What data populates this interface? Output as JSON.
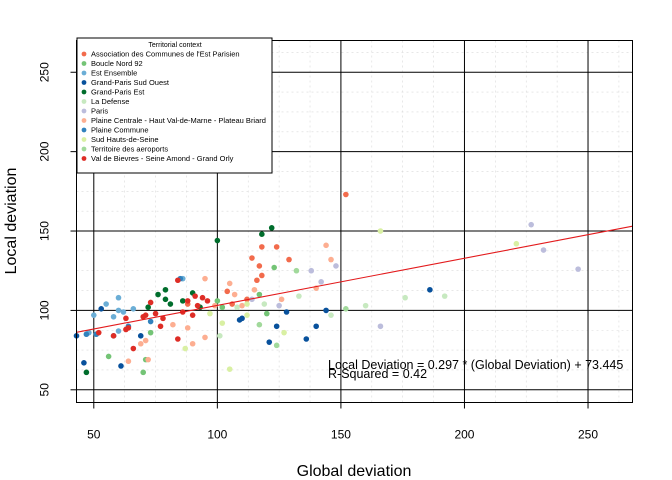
{
  "chart_data": {
    "type": "scatter",
    "title": "",
    "xlabel": "Global deviation",
    "ylabel": "Local deviation",
    "xlim": [
      43,
      268
    ],
    "ylim": [
      42,
      270
    ],
    "xticks": [
      50,
      100,
      150,
      200,
      250
    ],
    "yticks": [
      50,
      100,
      150,
      200,
      250
    ],
    "xtick_labels": [
      "50",
      "100",
      "150",
      "200",
      "250"
    ],
    "ytick_labels": [
      "50",
      "100",
      "150",
      "200",
      "250"
    ],
    "grid": true,
    "legend": {
      "title": "Territorial context",
      "placement": "top-left"
    },
    "regression": {
      "slope": 0.297,
      "intercept": 73.445,
      "color": "#e31a1c",
      "equation_text": "Local Deviation = 0.297 * (Global Deviation) + 73.445",
      "r2_text": "R-Squared = 0.42"
    },
    "series": [
      {
        "name": "Association des Communes de l'Est Parisien",
        "color": "#f26b4c",
        "points": [
          [
            152,
            173
          ],
          [
            118,
            140
          ],
          [
            124,
            140
          ],
          [
            114,
            133
          ],
          [
            129,
            132
          ],
          [
            117,
            128
          ],
          [
            118,
            122
          ],
          [
            116,
            119
          ],
          [
            104,
            112
          ],
          [
            112,
            107
          ],
          [
            106,
            104
          ],
          [
            88,
            104
          ]
        ]
      },
      {
        "name": "Boucle Nord 92",
        "color": "#74c476",
        "points": [
          [
            56,
            71
          ],
          [
            70,
            61
          ],
          [
            71,
            69
          ],
          [
            100,
            106
          ],
          [
            102,
            102
          ],
          [
            120,
            98
          ],
          [
            117,
            110
          ],
          [
            123,
            127
          ],
          [
            73,
            86
          ]
        ]
      },
      {
        "name": "Est Ensemble",
        "color": "#6baed6",
        "points": [
          [
            50,
            97
          ],
          [
            48,
            86
          ],
          [
            55,
            104
          ],
          [
            58,
            96
          ],
          [
            60,
            100
          ],
          [
            60,
            108
          ],
          [
            62,
            99
          ],
          [
            66,
            101
          ],
          [
            60,
            87
          ],
          [
            86,
            120
          ]
        ]
      },
      {
        "name": "Grand-Paris Sud Ouest",
        "color": "#08519c",
        "points": [
          [
            46,
            67
          ],
          [
            43,
            84
          ],
          [
            53,
            101
          ],
          [
            61,
            65
          ],
          [
            69,
            84
          ],
          [
            109,
            94
          ],
          [
            110,
            95
          ],
          [
            121,
            80
          ],
          [
            124,
            90
          ],
          [
            128,
            99
          ],
          [
            136,
            82
          ],
          [
            140,
            90
          ],
          [
            144,
            100
          ],
          [
            186,
            113
          ]
        ]
      },
      {
        "name": "Grand-Paris Est",
        "color": "#006d2c",
        "points": [
          [
            47,
            61
          ],
          [
            100,
            144
          ],
          [
            122,
            152
          ],
          [
            118,
            148
          ],
          [
            79,
            113
          ],
          [
            81,
            104
          ],
          [
            90,
            111
          ],
          [
            79,
            107
          ],
          [
            86,
            106
          ],
          [
            93,
            102
          ],
          [
            76,
            110
          ],
          [
            72,
            102
          ]
        ]
      },
      {
        "name": "La Defense",
        "color": "#c7e9c0",
        "points": [
          [
            101,
            84
          ],
          [
            108,
            102
          ],
          [
            119,
            104
          ],
          [
            133,
            109
          ],
          [
            176,
            108
          ],
          [
            192,
            109
          ],
          [
            146,
            97
          ],
          [
            160,
            103
          ]
        ]
      },
      {
        "name": "Paris",
        "color": "#bcbddc",
        "points": [
          [
            227,
            154
          ],
          [
            232,
            138
          ],
          [
            246,
            126
          ],
          [
            166,
            90
          ],
          [
            148,
            128
          ],
          [
            138,
            125
          ],
          [
            142,
            118
          ],
          [
            125,
            103
          ],
          [
            114,
            107
          ]
        ]
      },
      {
        "name": "Plaine Centrale - Haut Val-de-Marne - Plateau Briard",
        "color": "#fdae91",
        "points": [
          [
            95,
            120
          ],
          [
            105,
            117
          ],
          [
            107,
            110
          ],
          [
            110,
            103
          ],
          [
            115,
            113
          ],
          [
            126,
            107
          ],
          [
            144,
            141
          ],
          [
            146,
            132
          ],
          [
            140,
            114
          ],
          [
            64,
            68
          ],
          [
            69,
            79
          ],
          [
            71,
            81
          ],
          [
            72,
            69
          ],
          [
            82,
            91
          ],
          [
            88,
            89
          ],
          [
            90,
            79
          ],
          [
            95,
            83
          ],
          [
            99,
            103
          ]
        ]
      },
      {
        "name": "Plaine Commune",
        "color": "#3182bd",
        "points": [
          [
            47,
            85
          ],
          [
            51,
            85
          ],
          [
            58,
            84
          ],
          [
            64,
            90
          ],
          [
            85,
            120
          ],
          [
            73,
            93
          ]
        ]
      },
      {
        "name": "Sud Hauts-de-Seine",
        "color": "#d9f0a3",
        "points": [
          [
            166,
            150
          ],
          [
            221,
            142
          ],
          [
            105,
            63
          ],
          [
            112,
            97
          ],
          [
            127,
            86
          ],
          [
            112,
            104
          ],
          [
            87,
            76
          ],
          [
            97,
            98
          ],
          [
            102,
            92
          ]
        ]
      },
      {
        "name": "Territoire des aeroports",
        "color": "#a1d99b",
        "points": [
          [
            124,
            78
          ],
          [
            117,
            91
          ],
          [
            132,
            125
          ],
          [
            152,
            101
          ]
        ]
      },
      {
        "name": "Val de Bievres - Seine Amond - Grand Orly",
        "color": "#de2d26",
        "points": [
          [
            63,
            88
          ],
          [
            63,
            95
          ],
          [
            66,
            76
          ],
          [
            70,
            96
          ],
          [
            71,
            97
          ],
          [
            73,
            105
          ],
          [
            75,
            98
          ],
          [
            77,
            90
          ],
          [
            78,
            95
          ],
          [
            84,
            119
          ],
          [
            84,
            82
          ],
          [
            86,
            99
          ],
          [
            88,
            106
          ],
          [
            90,
            97
          ],
          [
            91,
            109
          ],
          [
            92,
            103
          ],
          [
            94,
            108
          ],
          [
            96,
            106
          ],
          [
            58,
            84
          ],
          [
            52,
            86
          ],
          [
            64,
            89
          ]
        ]
      }
    ]
  }
}
